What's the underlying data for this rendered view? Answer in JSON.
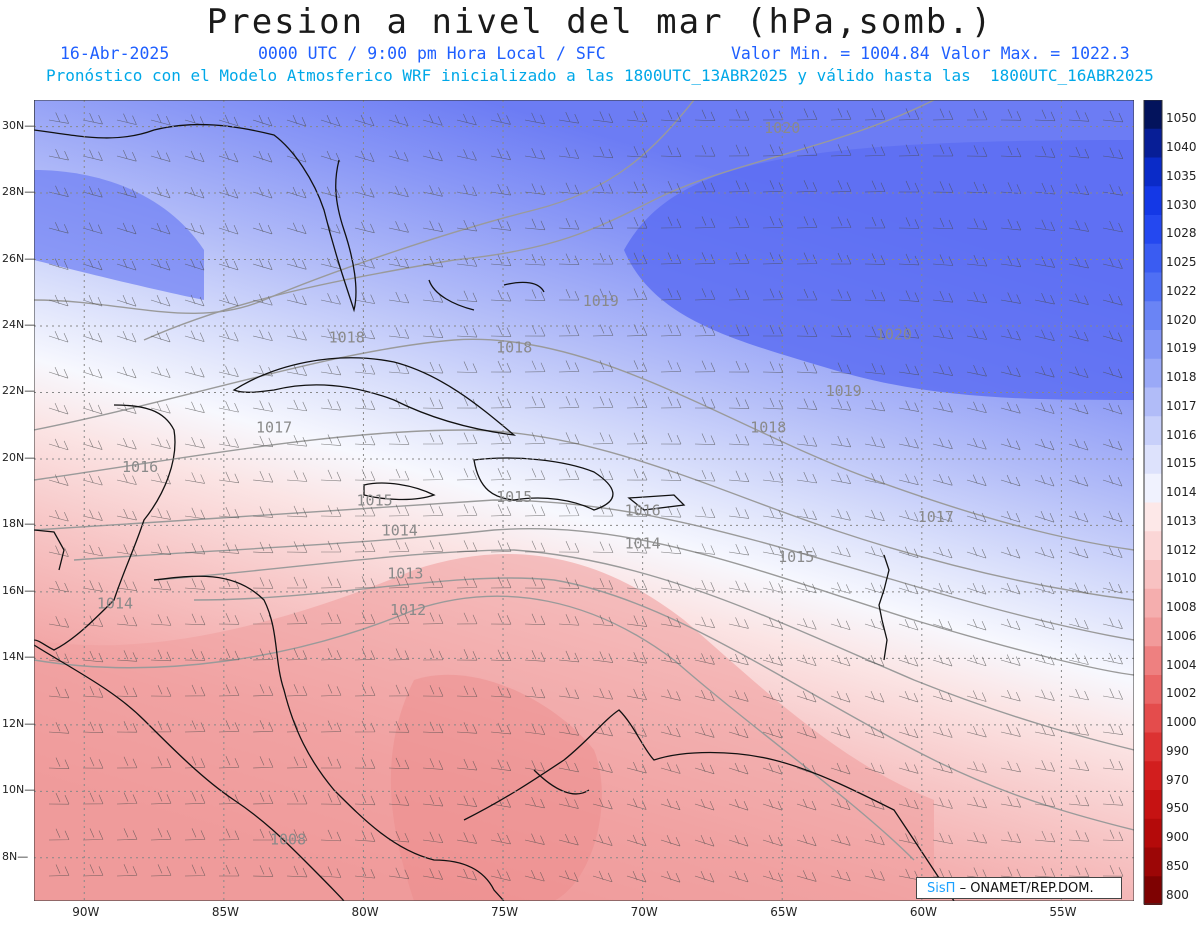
{
  "title": "Presion a nivel del mar (hPa,somb.)",
  "header": {
    "date": "16-Abr-2025",
    "time": "0000 UTC / 9:00 pm Hora Local / SFC",
    "min": "Valor Min. = 1004.84",
    "max": "Valor Max. = 1022.3",
    "model_line": "Pronóstico con el Modelo Atmosferico WRF inicializado a las 1800UTC_13ABR2025 y válido hasta las  1800UTC_16ABR2025"
  },
  "map": {
    "lat_labels": [
      "30N",
      "28N",
      "26N",
      "24N",
      "22N",
      "20N",
      "18N",
      "16N",
      "14N",
      "12N",
      "10N",
      "8N"
    ],
    "lon_labels": [
      "90W",
      "85W",
      "80W",
      "75W",
      "70W",
      "65W",
      "60W",
      "55W"
    ],
    "lat_values": [
      30,
      28,
      26,
      24,
      22,
      20,
      18,
      16,
      14,
      12,
      10,
      8
    ],
    "lon_values": [
      -90,
      -85,
      -80,
      -75,
      -70,
      -65,
      -60,
      -55
    ],
    "contour_labels": [
      {
        "text": "1020",
        "lon": -65,
        "lat": 29.8
      },
      {
        "text": "1019",
        "lon": -71.5,
        "lat": 24.6
      },
      {
        "text": "1018",
        "lon": -80.6,
        "lat": 23.5
      },
      {
        "text": "1018",
        "lon": -74.6,
        "lat": 23.2
      },
      {
        "text": "1020",
        "lon": -61,
        "lat": 23.6
      },
      {
        "text": "1019",
        "lon": -62.8,
        "lat": 21.9
      },
      {
        "text": "1018",
        "lon": -65.5,
        "lat": 20.8
      },
      {
        "text": "1017",
        "lon": -83.2,
        "lat": 20.8
      },
      {
        "text": "1016",
        "lon": -88,
        "lat": 19.6
      },
      {
        "text": "1015",
        "lon": -79.6,
        "lat": 18.6
      },
      {
        "text": "1015",
        "lon": -74.6,
        "lat": 18.7
      },
      {
        "text": "1016",
        "lon": -70,
        "lat": 18.3
      },
      {
        "text": "1017",
        "lon": -59.5,
        "lat": 18.1
      },
      {
        "text": "1014",
        "lon": -78.7,
        "lat": 17.7
      },
      {
        "text": "1014",
        "lon": -70,
        "lat": 17.3
      },
      {
        "text": "1015",
        "lon": -64.5,
        "lat": 16.9
      },
      {
        "text": "1013",
        "lon": -78.5,
        "lat": 16.4
      },
      {
        "text": "1014",
        "lon": -88.9,
        "lat": 15.5
      },
      {
        "text": "1012",
        "lon": -78.4,
        "lat": 15.3
      },
      {
        "text": "1008",
        "lon": -82.7,
        "lat": 8.4
      }
    ]
  },
  "colorbar": {
    "labels": [
      "1050",
      "1040",
      "1035",
      "1030",
      "1028",
      "1025",
      "1022",
      "1020",
      "1019",
      "1018",
      "1017",
      "1016",
      "1015",
      "1014",
      "1013",
      "1012",
      "1010",
      "1008",
      "1006",
      "1004",
      "1002",
      "1000",
      "990",
      "970",
      "950",
      "900",
      "850",
      "800"
    ],
    "colors": [
      "#03135c",
      "#071e96",
      "#0a2bc8",
      "#1438e6",
      "#2448f0",
      "#3a5cf2",
      "#4f6ff4",
      "#6a84f5",
      "#8396f6",
      "#9aa9f7",
      "#b1bcf8",
      "#c8d0fa",
      "#dde2fc",
      "#f0f2fe",
      "#fde8e8",
      "#fbd6d6",
      "#f8c2c2",
      "#f5aeae",
      "#f29a9a",
      "#ee8080",
      "#ea6666",
      "#e44c4c",
      "#dc3232",
      "#d21e1e",
      "#c61212",
      "#b40a0a",
      "#9c0606",
      "#7e0202"
    ]
  },
  "credit": {
    "brand": "SisΠ",
    "text": "– ONAMET/REP.DOM."
  }
}
